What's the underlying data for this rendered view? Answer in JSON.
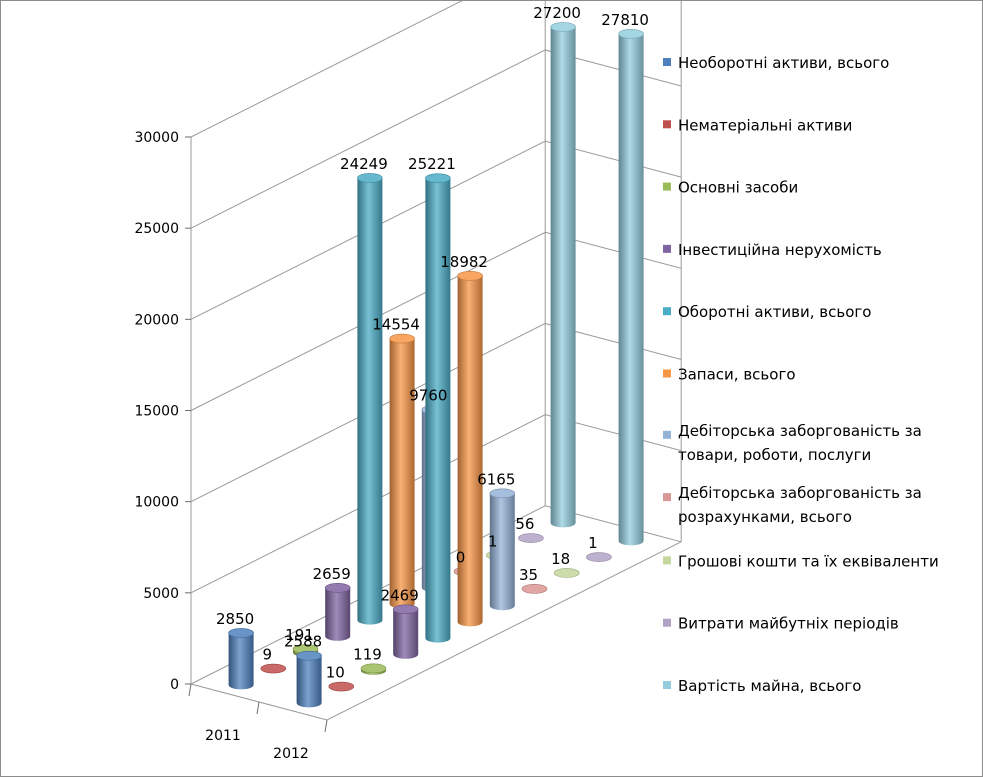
{
  "chart_data": {
    "type": "bar",
    "variant": "3d-cylinder",
    "title": "",
    "xlabel": "",
    "ylabel": "",
    "ylim": [
      0,
      30000
    ],
    "yticks": [
      "0",
      "5000",
      "10000",
      "15000",
      "20000",
      "25000",
      "30000"
    ],
    "categories": [
      "2011",
      "2012"
    ],
    "legend_position": "right",
    "series": [
      {
        "name": "Необоротні активи, всього",
        "color": "#4f81bd",
        "values": [
          2850,
          2588
        ],
        "labels": [
          "2850",
          "2588"
        ]
      },
      {
        "name": "Нематеріальні активи",
        "color": "#c0504d",
        "values": [
          9,
          10
        ],
        "labels": [
          "9",
          "10"
        ]
      },
      {
        "name": "Основні засоби",
        "color": "#9bbb59",
        "values": [
          191,
          119
        ],
        "labels": [
          "191",
          "119"
        ]
      },
      {
        "name": "Інвестиційна нерухомість",
        "color": "#8064a2",
        "values": [
          2659,
          2469
        ],
        "labels": [
          "2659",
          "2469"
        ]
      },
      {
        "name": "Оборотні активи, всього",
        "color": "#4bacc6",
        "values": [
          24249,
          25221
        ],
        "labels": [
          "24249",
          "25221"
        ]
      },
      {
        "name": "Запаси, всього",
        "color": "#f79646",
        "values": [
          14554,
          18982
        ],
        "labels": [
          "14554",
          "18982"
        ]
      },
      {
        "name": "Дебіторська заборгованість за товари, роботи, послуги",
        "legend_lines": [
          "Дебіторська заборгованість за",
          "товари, роботи, послуги"
        ],
        "color": "#95b3d7",
        "values": [
          9760,
          6165
        ],
        "labels": [
          "9760",
          "6165"
        ]
      },
      {
        "name": "Дебіторська заборгованість за розрахунками, всього",
        "legend_lines": [
          "Дебіторська заборгованість за",
          "розрахунками, всього"
        ],
        "color": "#d99694",
        "values": [
          0,
          35
        ],
        "labels": [
          "0",
          "35"
        ]
      },
      {
        "name": "Грошові кошти та їх еквіваленти",
        "color": "#c3d69b",
        "values": [
          1,
          18
        ],
        "labels": [
          "1",
          "18"
        ]
      },
      {
        "name": "Витрати майбутніх періодів",
        "color": "#b2a2c7",
        "values": [
          56,
          1
        ],
        "labels": [
          "56",
          "1"
        ]
      },
      {
        "name": "Вартість майна, всього",
        "color": "#93cddd",
        "values": [
          27200,
          27810
        ],
        "labels": [
          "27200",
          "27810"
        ]
      }
    ]
  }
}
